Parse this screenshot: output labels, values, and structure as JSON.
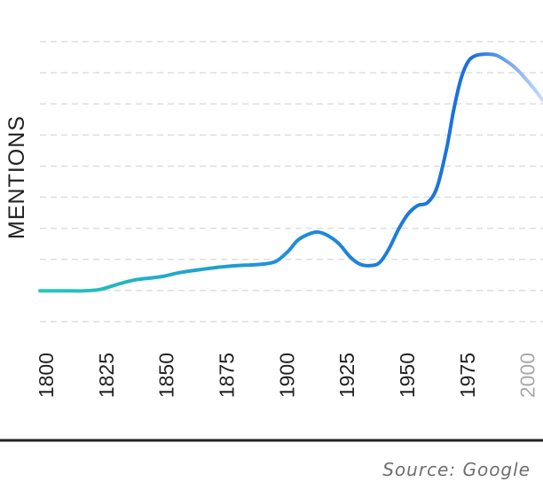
{
  "chart_data": {
    "type": "line",
    "ylabel": "MENTIONS",
    "xlabel": "",
    "x_ticks": [
      {
        "label": "1800",
        "value": 1800,
        "muted": false
      },
      {
        "label": "1825",
        "value": 1825,
        "muted": false
      },
      {
        "label": "1850",
        "value": 1850,
        "muted": false
      },
      {
        "label": "1875",
        "value": 1875,
        "muted": false
      },
      {
        "label": "1900",
        "value": 1900,
        "muted": false
      },
      {
        "label": "1925",
        "value": 1925,
        "muted": false
      },
      {
        "label": "1950",
        "value": 1950,
        "muted": false
      },
      {
        "label": "1975",
        "value": 1975,
        "muted": false
      },
      {
        "label": "2000",
        "value": 2000,
        "muted": true
      }
    ],
    "xlim": [
      1800,
      2009
    ],
    "ylim": [
      0,
      10
    ],
    "grid": true,
    "gridlines": 10,
    "series": [
      {
        "x": [
          1800,
          1810,
          1818,
          1825,
          1833,
          1840,
          1850,
          1858,
          1866,
          1875,
          1882,
          1892,
          1898,
          1903,
          1907,
          1911,
          1915,
          1919,
          1924,
          1929,
          1933,
          1937,
          1941,
          1945,
          1949,
          1953,
          1957,
          1961,
          1965,
          1969,
          1972,
          1975,
          1978,
          1981,
          1984,
          1987,
          1990,
          1993,
          1997,
          2001,
          2005,
          2009
        ],
        "y": [
          1.1,
          1.1,
          1.1,
          1.15,
          1.35,
          1.5,
          1.6,
          1.75,
          1.85,
          1.95,
          2.0,
          2.05,
          2.15,
          2.5,
          2.9,
          3.1,
          3.2,
          3.1,
          2.8,
          2.3,
          2.05,
          2.0,
          2.1,
          2.6,
          3.3,
          3.85,
          4.15,
          4.25,
          4.8,
          6.2,
          7.6,
          8.7,
          9.3,
          9.5,
          9.55,
          9.55,
          9.5,
          9.35,
          9.1,
          8.75,
          8.35,
          7.9
        ]
      }
    ],
    "colors": {
      "line_start": "#25c9b8",
      "line_mid": "#1f8ed8",
      "line_end": "#1a6fe0",
      "line_fade": "#c9dcf6",
      "grid": "#dddddd",
      "baseline": "#222222"
    }
  },
  "source": "Source: Google"
}
